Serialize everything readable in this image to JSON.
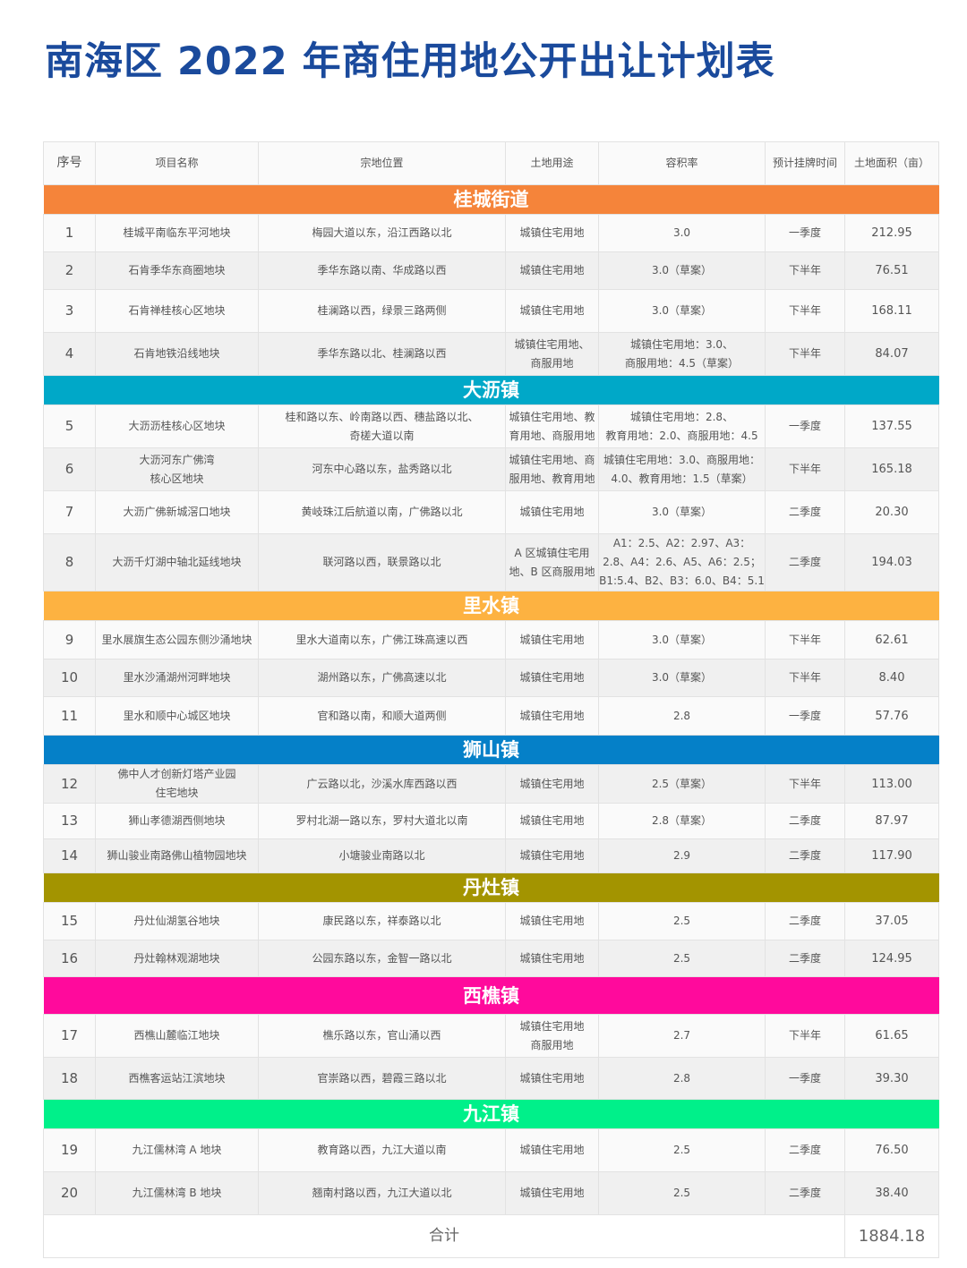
{
  "title": "南海区 2022 年商住用地公开出让计划表",
  "columns": [
    "序号",
    "项目名称",
    "宗地位置",
    "土地用途",
    "容积率",
    "预计挂牌时间",
    "土地面积（亩）"
  ],
  "sections": [
    {
      "name": "桂城街道",
      "color": "#f5843a",
      "rows": [
        [
          "1",
          "桂城平南临东平河地块",
          "梅园大道以东，沿江西路以北",
          "城镇住宅用地",
          "3.0",
          "一季度",
          "212.95"
        ],
        [
          "2",
          "石肯季华东商圈地块",
          "季华东路以南、华成路以西",
          "城镇住宅用地",
          "3.0（草案）",
          "下半年",
          "76.51"
        ],
        [
          "3",
          "石肯禅桂核心区地块",
          "桂澜路以西，绿景三路两侧",
          "城镇住宅用地",
          "3.0（草案）",
          "下半年",
          "168.11"
        ],
        [
          "4",
          "石肯地铁沿线地块",
          "季华东路以北、桂澜路以西",
          "城镇住宅用地、\n商服用地",
          "城镇住宅用地：3.0、\n商服用地：4.5（草案）",
          "下半年",
          "84.07"
        ]
      ]
    },
    {
      "name": "大沥镇",
      "color": "#00a8c8",
      "rows": [
        [
          "5",
          "大沥沥桂核心区地块",
          "桂和路以东、岭南路以西、穗盐路以北、\n奇槎大道以南",
          "城镇住宅用地、教\n育用地、商服用地",
          "城镇住宅用地：2.8、\n教育用地：2.0、商服用地：4.5",
          "一季度",
          "137.55"
        ],
        [
          "6",
          "大沥河东广佛湾\n核心区地块",
          "河东中心路以东，盐秀路以北",
          "城镇住宅用地、商\n服用地、教育用地",
          "城镇住宅用地：3.0、商服用地：\n4.0、教育用地：1.5（草案）",
          "下半年",
          "165.18"
        ],
        [
          "7",
          "大沥广佛新城滘口地块",
          "黄岐珠江后航道以南，广佛路以北",
          "城镇住宅用地",
          "3.0（草案）",
          "二季度",
          "20.30"
        ],
        [
          "8",
          "大沥千灯湖中轴北延线地块",
          "联河路以西，联景路以北",
          "A 区城镇住宅用\n地、B 区商服用地",
          "A1：2.5、A2：2.97、A3：\n2.8、A4：2.6、A5、A6：2.5；\nB1:5.4、B2、B3：6.0、B4：5.1",
          "二季度",
          "194.03"
        ]
      ]
    },
    {
      "name": "里水镇",
      "color": "#fdb241",
      "rows": [
        [
          "9",
          "里水展旗生态公园东侧沙涌地块",
          "里水大道南以东，广佛江珠高速以西",
          "城镇住宅用地",
          "3.0（草案）",
          "下半年",
          "62.61"
        ],
        [
          "10",
          "里水沙涌湖州河畔地块",
          "湖州路以东，广佛高速以北",
          "城镇住宅用地",
          "3.0（草案）",
          "下半年",
          "8.40"
        ],
        [
          "11",
          "里水和顺中心城区地块",
          "官和路以南，和顺大道两侧",
          "城镇住宅用地",
          "2.8",
          "一季度",
          "57.76"
        ]
      ]
    },
    {
      "name": "狮山镇",
      "color": "#0580c8",
      "rows": [
        [
          "12",
          "佛中人才创新灯塔产业园\n住宅地块",
          "广云路以北，沙溪水库西路以西",
          "城镇住宅用地",
          "2.5（草案）",
          "下半年",
          "113.00"
        ],
        [
          "13",
          "狮山孝德湖西侧地块",
          "罗村北湖一路以东，罗村大道北以南",
          "城镇住宅用地",
          "2.8（草案）",
          "二季度",
          "87.97"
        ],
        [
          "14",
          "狮山骏业南路佛山植物园地块",
          "小塘骏业南路以北",
          "城镇住宅用地",
          "2.9",
          "二季度",
          "117.90"
        ]
      ]
    },
    {
      "name": "丹灶镇",
      "color": "#a39400",
      "rows": [
        [
          "15",
          "丹灶仙湖氢谷地块",
          "康民路以东，祥泰路以北",
          "城镇住宅用地",
          "2.5",
          "二季度",
          "37.05"
        ],
        [
          "16",
          "丹灶翰林观湖地块",
          "公园东路以东，金智一路以北",
          "城镇住宅用地",
          "2.5",
          "二季度",
          "124.95"
        ]
      ]
    },
    {
      "name": "西樵镇",
      "color": "#ff0a9c",
      "rows": [
        [
          "17",
          "西樵山麓临江地块",
          "樵乐路以东，官山涌以西",
          "城镇住宅用地\n商服用地",
          "2.7",
          "下半年",
          "61.65"
        ],
        [
          "18",
          "西樵客运站江滨地块",
          "官崇路以西，碧霞三路以北",
          "城镇住宅用地",
          "2.8",
          "一季度",
          "39.30"
        ]
      ]
    },
    {
      "name": "九江镇",
      "color": "#00f08a",
      "rows": [
        [
          "19",
          "九江儒林湾 A 地块",
          "教育路以西，九江大道以南",
          "城镇住宅用地",
          "2.5",
          "二季度",
          "76.50"
        ],
        [
          "20",
          "九江儒林湾 B 地块",
          "翘南村路以西，九江大道以北",
          "城镇住宅用地",
          "2.5",
          "二季度",
          "38.40"
        ]
      ]
    }
  ],
  "total": {
    "label": "合计",
    "value": "1884.18"
  }
}
